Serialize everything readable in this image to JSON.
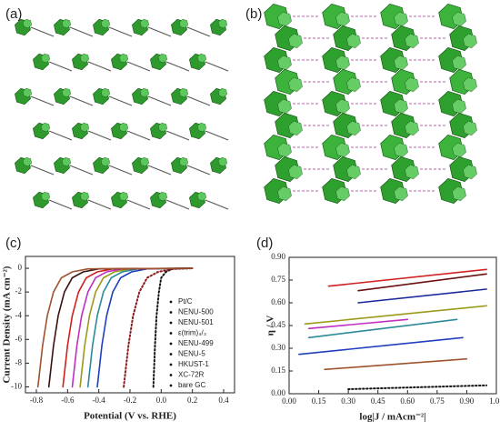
{
  "panel_labels": [
    "(a)",
    "(b)",
    "(c)",
    "(d)"
  ],
  "chart_data": [
    {
      "type": "line",
      "x_label": "Potential (V vs. RHE)",
      "y_label": "Current Density (mA cm⁻²)",
      "xlim": [
        -0.87,
        0.47
      ],
      "xticks": [
        -0.8,
        -0.6,
        -0.4,
        -0.2,
        {
          "value": 0,
          "label": "0.0"
        },
        0.2,
        0.4
      ],
      "ylim": [
        -10.5,
        1
      ],
      "yticks": [
        0,
        -2,
        -4,
        -6,
        -8,
        -10
      ],
      "legend": "lower right",
      "series": [
        {
          "name": "Pt/C",
          "color": "#111111",
          "style": "dotted",
          "x": [
            -0.05,
            -0.04,
            -0.03,
            -0.015,
            0,
            0.03,
            0.07,
            0.2
          ],
          "values": [
            -10,
            -6.5,
            -4,
            -2,
            -0.8,
            -0.3,
            -0.05,
            0
          ]
        },
        {
          "name": "NENU-500",
          "color": "#8b1a1a",
          "style": "dotted",
          "x": [
            -0.24,
            -0.21,
            -0.18,
            -0.14,
            -0.09,
            -0.02,
            0.08,
            0.2
          ],
          "values": [
            -10,
            -6.5,
            -4,
            -2,
            -0.8,
            -0.3,
            -0.05,
            0
          ]
        },
        {
          "name": "NENU-501",
          "color": "#1f3fbf",
          "style": "solid",
          "x": [
            -0.41,
            -0.38,
            -0.35,
            -0.31,
            -0.26,
            -0.19,
            -0.09,
            0.2
          ],
          "values": [
            -10,
            -6.5,
            -4,
            -2,
            -0.8,
            -0.3,
            -0.05,
            0
          ]
        },
        {
          "name": "ε(trim)₄/₃",
          "color": "#2a8a9a",
          "style": "solid",
          "x": [
            -0.47,
            -0.44,
            -0.41,
            -0.37,
            -0.32,
            -0.25,
            -0.15,
            0.2
          ],
          "values": [
            -10,
            -6.5,
            -4,
            -2,
            -0.8,
            -0.3,
            -0.05,
            0
          ]
        },
        {
          "name": "NENU-499",
          "color": "#9a9a1a",
          "style": "solid",
          "x": [
            -0.52,
            -0.49,
            -0.46,
            -0.42,
            -0.37,
            -0.3,
            -0.2,
            0.2
          ],
          "values": [
            -10,
            -6.5,
            -4,
            -2,
            -0.8,
            -0.3,
            -0.05,
            0
          ]
        },
        {
          "name": "NENU-5",
          "color": "#c030c0",
          "style": "solid",
          "x": [
            -0.57,
            -0.54,
            -0.51,
            -0.47,
            -0.42,
            -0.35,
            -0.25,
            0.2
          ],
          "values": [
            -10,
            -6.5,
            -4,
            -2,
            -0.8,
            -0.3,
            -0.05,
            0
          ]
        },
        {
          "name": "HKUST-1",
          "color": "#d02020",
          "style": "solid",
          "x": [
            -0.63,
            -0.6,
            -0.57,
            -0.53,
            -0.48,
            -0.41,
            -0.31,
            0.2
          ],
          "values": [
            -10,
            -6.5,
            -4,
            -2,
            -0.8,
            -0.3,
            -0.05,
            0
          ]
        },
        {
          "name": "XC-72R",
          "color": "#3a1010",
          "style": "solid",
          "x": [
            -0.72,
            -0.69,
            -0.66,
            -0.62,
            -0.57,
            -0.5,
            -0.4,
            0.2
          ],
          "values": [
            -10,
            -6.5,
            -4,
            -2,
            -0.8,
            -0.3,
            -0.05,
            0
          ]
        },
        {
          "name": "bare GC",
          "color": "#a0522d",
          "style": "solid",
          "x": [
            -0.79,
            -0.76,
            -0.73,
            -0.69,
            -0.64,
            -0.57,
            -0.47,
            0.2
          ],
          "values": [
            -10,
            -6.5,
            -4,
            -2,
            -0.8,
            -0.3,
            -0.05,
            0
          ]
        }
      ]
    },
    {
      "type": "line",
      "x_label": "log|J / mAcm⁻²|",
      "y_label": "η / V",
      "xlim": [
        0,
        1.05
      ],
      "xticks": [
        {
          "value": 0,
          "label": "0.00"
        },
        0.15,
        {
          "value": 0.3,
          "label": "0.30"
        },
        0.45,
        {
          "value": 0.6,
          "label": "0.60"
        },
        0.75,
        {
          "value": 0.9,
          "label": "0.90"
        },
        1.05
      ],
      "ylim": [
        0,
        0.9
      ],
      "yticks": [
        {
          "value": 0,
          "label": "0.00"
        },
        0.15,
        {
          "value": 0.3,
          "label": "0.30"
        },
        0.45,
        {
          "value": 0.6,
          "label": "0.60"
        },
        0.75,
        {
          "value": 0.9,
          "label": "0.90"
        }
      ],
      "series": [
        {
          "color": "#111111",
          "style": "dotted",
          "x": [
            0.3,
            1.0
          ],
          "values": [
            0.03,
            0.055
          ]
        },
        {
          "color": "#a0522d",
          "style": "solid",
          "x": [
            0.18,
            0.9
          ],
          "values": [
            0.16,
            0.23
          ]
        },
        {
          "color": "#1f3fbf",
          "style": "solid",
          "x": [
            0.05,
            0.88
          ],
          "values": [
            0.26,
            0.37
          ]
        },
        {
          "color": "#2a8a9a",
          "style": "solid",
          "x": [
            0.1,
            0.85
          ],
          "values": [
            0.37,
            0.49
          ]
        },
        {
          "color": "#c030c0",
          "style": "solid",
          "x": [
            0.1,
            0.6
          ],
          "values": [
            0.43,
            0.49
          ]
        },
        {
          "color": "#9a9a1a",
          "style": "solid",
          "x": [
            0.08,
            1.0
          ],
          "values": [
            0.46,
            0.58
          ]
        },
        {
          "color": "#1a2a9a",
          "style": "solid",
          "x": [
            0.35,
            1.0
          ],
          "values": [
            0.6,
            0.69
          ]
        },
        {
          "color": "#6a1010",
          "style": "solid",
          "x": [
            0.35,
            1.0
          ],
          "values": [
            0.68,
            0.79
          ]
        },
        {
          "color": "#d02020",
          "style": "solid",
          "x": [
            0.2,
            1.0
          ],
          "values": [
            0.71,
            0.82
          ]
        }
      ]
    }
  ]
}
